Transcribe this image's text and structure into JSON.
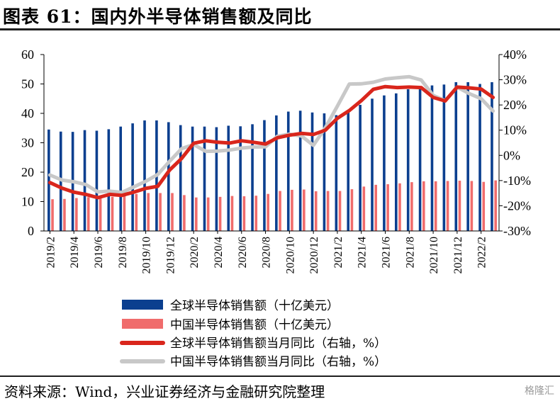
{
  "title": "图表 61：国内外半导体销售额及同比",
  "source": "资料来源：Wind，兴业证券经济与金融研究院整理",
  "watermark": "格隆汇",
  "chart_data": {
    "type": "bar",
    "xlabel": "",
    "ylabel": "",
    "categories": [
      "2019/2",
      "2019/3",
      "2019/4",
      "2019/5",
      "2019/6",
      "2019/7",
      "2019/8",
      "2019/9",
      "2019/10",
      "2019/11",
      "2019/12",
      "2020/1",
      "2020/2",
      "2020/3",
      "2020/4",
      "2020/5",
      "2020/6",
      "2020/7",
      "2020/8",
      "2020/9",
      "2020/10",
      "2020/11",
      "2020/12",
      "2021/1",
      "2021/2",
      "2021/3",
      "2021/4",
      "2021/5",
      "2021/6",
      "2021/7",
      "2021/8",
      "2021/9",
      "2021/10",
      "2021/11",
      "2021/12",
      "2022/1",
      "2022/2",
      "2022/3"
    ],
    "x_tick_labels": [
      "2019/2",
      "2019/4",
      "2019/6",
      "2019/8",
      "2019/10",
      "2019/12",
      "2020/2",
      "2020/4",
      "2020/6",
      "2020/8",
      "2020/10",
      "2020/12",
      "2021/2",
      "2021/4",
      "2021/6",
      "2021/8",
      "2021/10",
      "2021/12",
      "2022/2"
    ],
    "ylim": [
      0,
      60
    ],
    "y_ticks": [
      0,
      10,
      20,
      30,
      40,
      50,
      60
    ],
    "y2lim": [
      -30,
      40
    ],
    "y2_ticks": [
      "-30%",
      "-20%",
      "-10%",
      "0%",
      "10%",
      "20%",
      "30%",
      "40%"
    ],
    "y2_values": [
      -30,
      -20,
      -10,
      0,
      10,
      20,
      30,
      40
    ],
    "legend_position": "bottom",
    "series": [
      {
        "name": "全球半导体销售额（十亿美元）",
        "type": "bar",
        "color": "#0b3f8f",
        "axis": "left",
        "values": [
          34.5,
          33.8,
          33.7,
          34.3,
          34.1,
          34.6,
          35.5,
          36.6,
          37.6,
          37.6,
          37.0,
          36.0,
          35.5,
          35.5,
          35.3,
          35.8,
          35.6,
          36.3,
          37.7,
          39.3,
          40.6,
          40.9,
          40.3,
          40.0,
          39.4,
          41.1,
          42.9,
          45.0,
          46.1,
          46.8,
          48.2,
          48.9,
          49.5,
          49.8,
          50.6,
          50.6,
          50.0,
          50.6
        ]
      },
      {
        "name": "中国半导体销售额（十亿美元）",
        "type": "bar",
        "color": "#f06c6c",
        "axis": "left",
        "values": [
          10.8,
          10.9,
          11.2,
          11.5,
          11.3,
          11.6,
          12.0,
          12.6,
          12.9,
          12.9,
          12.9,
          12.2,
          11.4,
          11.4,
          11.6,
          11.9,
          11.8,
          12.0,
          12.6,
          13.6,
          14.0,
          14.1,
          13.5,
          13.6,
          13.6,
          14.2,
          15.1,
          15.7,
          15.9,
          16.2,
          16.6,
          16.9,
          16.9,
          17.0,
          17.1,
          17.0,
          16.7,
          17.2
        ]
      },
      {
        "name": "全球半导体销售额当月同比（右轴，%）",
        "type": "line",
        "color": "#d9261c",
        "axis": "right",
        "values": [
          -10.8,
          -13.0,
          -14.6,
          -15.5,
          -16.8,
          -15.5,
          -15.9,
          -14.6,
          -13.1,
          -12.3,
          -5.8,
          -1.2,
          4.8,
          5.8,
          5.2,
          4.9,
          5.8,
          5.2,
          4.5,
          7.0,
          8.0,
          8.7,
          8.3,
          10.0,
          14.7,
          17.8,
          21.7,
          26.2,
          27.3,
          26.9,
          27.1,
          26.9,
          23.0,
          21.6,
          27.1,
          26.8,
          26.3,
          23.0
        ]
      },
      {
        "name": "中国半导体销售额当月同比（右轴，%）",
        "type": "line",
        "color": "#c8c8c8",
        "axis": "right",
        "values": [
          -7.8,
          -9.8,
          -10.5,
          -11.6,
          -14.5,
          -14.2,
          -14.7,
          -12.5,
          -10.3,
          -7.6,
          -2.3,
          2.7,
          4.3,
          1.6,
          1.7,
          2.1,
          2.9,
          3.3,
          3.4,
          7.6,
          8.4,
          7.7,
          4.0,
          11.0,
          19.5,
          28.3,
          28.4,
          29.0,
          30.3,
          30.8,
          31.2,
          29.9,
          23.8,
          21.7,
          27.1,
          24.5,
          22.5,
          17.6
        ]
      }
    ]
  }
}
